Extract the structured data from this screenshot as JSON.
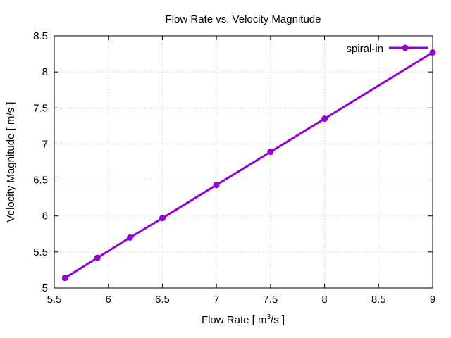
{
  "chart_data": {
    "type": "line",
    "title": "Flow Rate vs. Velocity Magnitude",
    "xlabel": "Flow Rate [ m",
    "xlabel_sup": "3",
    "xlabel_tail": "/s ]",
    "ylabel": "Velocity Magnitude [ m/s ]",
    "xlim": [
      5.5,
      9
    ],
    "ylim": [
      5,
      8.5
    ],
    "xticks": [
      "5.5",
      "6",
      "6.5",
      "7",
      "7.5",
      "8",
      "8.5",
      "9"
    ],
    "yticks": [
      "5",
      "5.5",
      "6",
      "6.5",
      "7",
      "7.5",
      "8",
      "8.5"
    ],
    "grid": true,
    "legend_position": "top-right",
    "series": [
      {
        "name": "spiral-in",
        "color": "#9400d3",
        "x": [
          5.6,
          5.9,
          6.2,
          6.5,
          7.0,
          7.5,
          8.0,
          9.0
        ],
        "y": [
          5.14,
          5.42,
          5.7,
          5.97,
          6.43,
          6.89,
          7.35,
          8.27
        ]
      }
    ]
  }
}
